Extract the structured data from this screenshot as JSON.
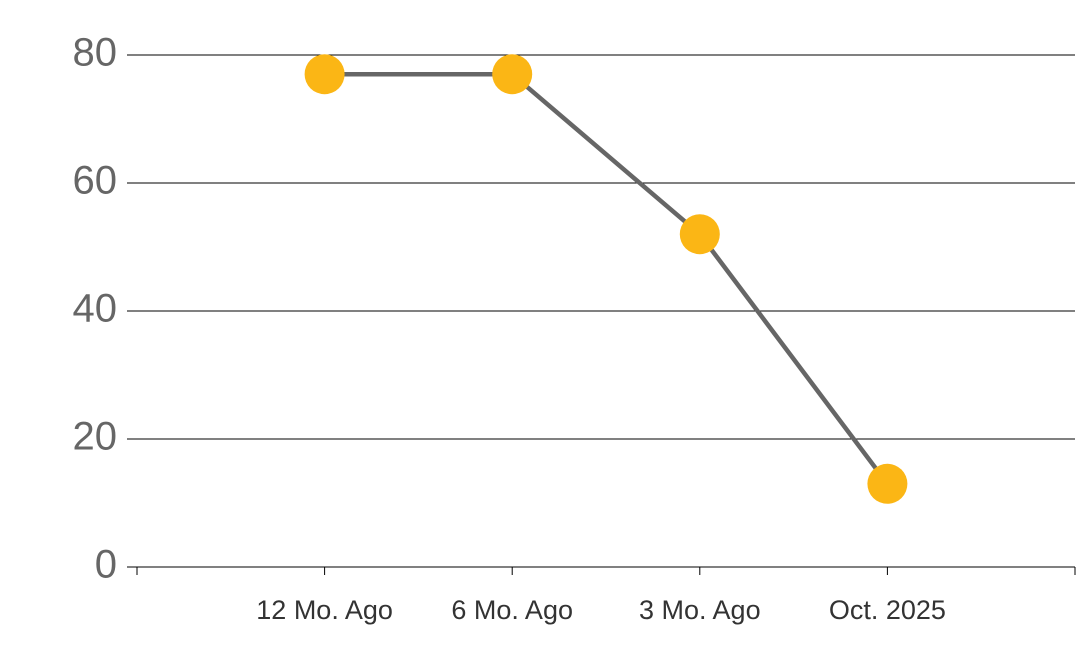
{
  "chart_data": {
    "type": "line",
    "categories": [
      "12 Mo. Ago",
      "6 Mo. Ago",
      "3 Mo. Ago",
      "Oct. 2025"
    ],
    "series": [
      {
        "values": [
          77,
          77,
          52,
          13
        ],
        "color": "#666666",
        "marker_color": "#fbb615"
      }
    ],
    "ylim": [
      0,
      80
    ],
    "yticks": [
      0,
      20,
      40,
      60,
      80
    ],
    "grid": true
  }
}
